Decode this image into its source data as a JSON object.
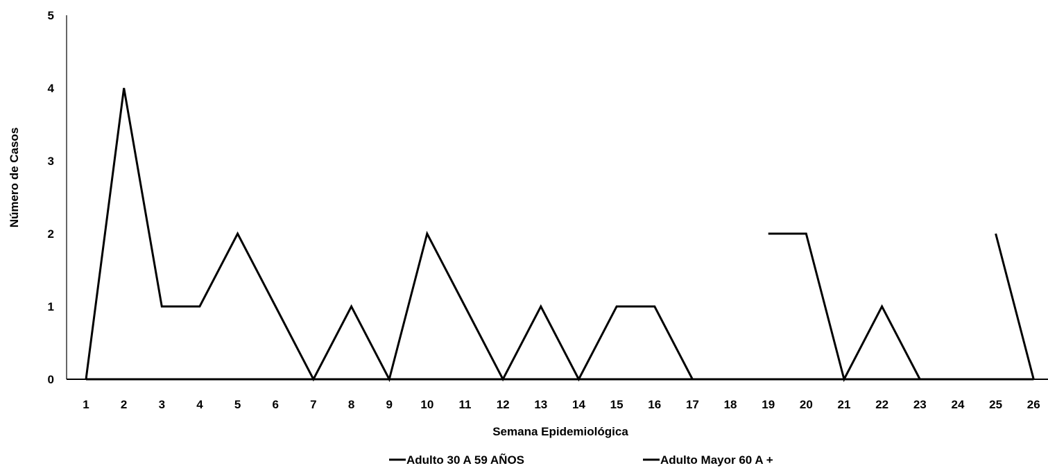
{
  "chart_data": {
    "type": "line",
    "xlabel": "Semana Epidemiológica",
    "ylabel": "Número de Casos",
    "categories": [
      "1",
      "2",
      "3",
      "4",
      "5",
      "6",
      "7",
      "8",
      "9",
      "10",
      "11",
      "12",
      "13",
      "14",
      "15",
      "16",
      "17",
      "18",
      "19",
      "20",
      "21",
      "22",
      "23",
      "24",
      "25",
      "26"
    ],
    "ylim": [
      0,
      5
    ],
    "yticks": [
      0,
      1,
      2,
      3,
      4,
      5
    ],
    "grid": false,
    "legend_position": "bottom",
    "series": [
      {
        "name": "Adulto 30 A 59 AÑOS",
        "color": "#000000",
        "values": [
          0,
          4,
          1,
          1,
          2,
          1,
          0,
          1,
          0,
          2,
          1,
          0,
          1,
          0,
          1,
          1,
          0,
          null,
          2,
          2,
          0,
          1,
          0,
          null,
          2,
          0
        ]
      },
      {
        "name": "Adulto Mayor 60 A +",
        "color": "#000000",
        "values": [
          0,
          0,
          0,
          0,
          0,
          0,
          0,
          0,
          0,
          0,
          0,
          0,
          0,
          0,
          0,
          0,
          0,
          0,
          0,
          0,
          0,
          0,
          0,
          0,
          0,
          0
        ]
      }
    ]
  }
}
